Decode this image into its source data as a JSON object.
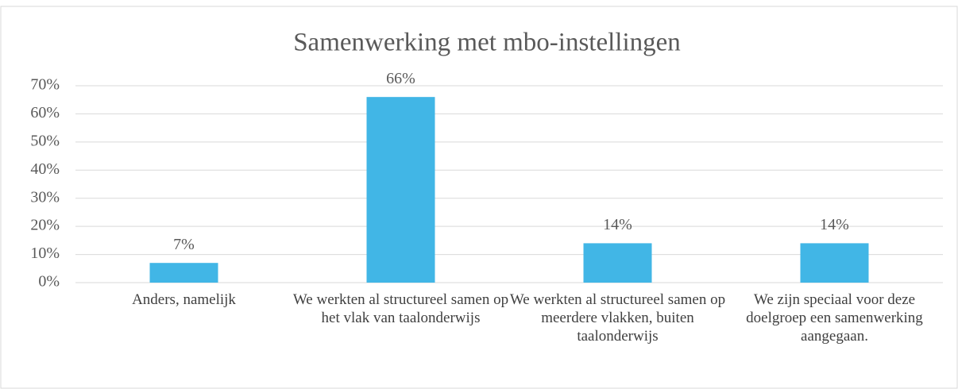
{
  "chart_data": {
    "type": "bar",
    "title": "Samenwerking met mbo-instellingen",
    "categories": [
      "Anders, namelijk",
      "We werkten al structureel samen op het vlak van taalonderwijs",
      "We werkten al structureel samen op meerdere vlakken, buiten taalonderwijs",
      "We zijn speciaal voor deze doelgroep een samenwerking aangegaan."
    ],
    "values": [
      7,
      66,
      14,
      14
    ],
    "value_labels": [
      "7%",
      "66%",
      "14%",
      "14%"
    ],
    "color": "#41b6e6",
    "ylim": [
      0,
      70
    ],
    "yticks": [
      {
        "value": 0,
        "label": "0%"
      },
      {
        "value": 10,
        "label": "10%"
      },
      {
        "value": 20,
        "label": "20%"
      },
      {
        "value": 30,
        "label": "30%"
      },
      {
        "value": 40,
        "label": "40%"
      },
      {
        "value": 50,
        "label": "50%"
      },
      {
        "value": 60,
        "label": "60%"
      },
      {
        "value": 70,
        "label": "70%"
      }
    ],
    "grid": true
  }
}
